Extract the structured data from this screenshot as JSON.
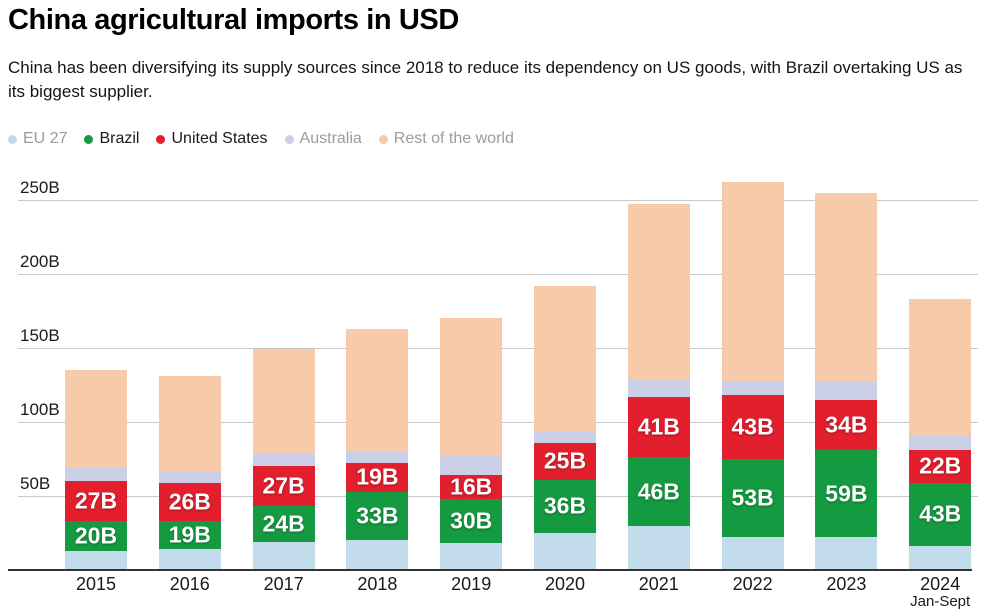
{
  "header": {
    "title": "China agricultural imports in USD",
    "subtitle": "China has been diversifying its supply sources since 2018 to reduce its dependency on US goods, with Brazil overtaking US as its biggest supplier."
  },
  "legend": {
    "items": [
      {
        "label": "EU 27",
        "color": "#bedaea",
        "muted": true
      },
      {
        "label": "Brazil",
        "color": "#149a40",
        "muted": false
      },
      {
        "label": "United States",
        "color": "#e31e2d",
        "muted": false
      },
      {
        "label": "Australia",
        "color": "#cbcfe7",
        "muted": true
      },
      {
        "label": "Rest of the world",
        "color": "#f7cbaa",
        "muted": true
      }
    ]
  },
  "colors": {
    "grid": "#c9c9c9",
    "axis": "#333333",
    "text": "#1a1a1a",
    "muted_text": "#9b9b9b",
    "bar_label": "#ffffff"
  },
  "chart_data": {
    "type": "bar",
    "stacked": true,
    "title": "China agricultural imports in USD",
    "unit": "billions of USD",
    "categories": [
      "2015",
      "2016",
      "2017",
      "2018",
      "2019",
      "2020",
      "2021",
      "2022",
      "2023",
      "2024"
    ],
    "last_category_note": "Jan-Sept",
    "series": [
      {
        "name": "EU 27",
        "color": "#c3dcec",
        "values": [
          13,
          14,
          19,
          20,
          18,
          25,
          30,
          22,
          22,
          16
        ],
        "labels": [
          "",
          "",
          "",
          "",
          "",
          "",
          "",
          "",
          "",
          ""
        ]
      },
      {
        "name": "Brazil",
        "color": "#149a40",
        "values": [
          20,
          19,
          24,
          33,
          30,
          36,
          46,
          53,
          59,
          43
        ],
        "labels": [
          "20B",
          "19B",
          "24B",
          "33B",
          "30B",
          "36B",
          "46B",
          "53B",
          "59B",
          "43B"
        ]
      },
      {
        "name": "United States",
        "color": "#e31e2d",
        "values": [
          27,
          26,
          27,
          19,
          16,
          25,
          41,
          43,
          34,
          22
        ],
        "labels": [
          "27B",
          "26B",
          "27B",
          "19B",
          "16B",
          "25B",
          "41B",
          "43B",
          "34B",
          "22B"
        ]
      },
      {
        "name": "Australia",
        "color": "#cbcfe7",
        "values": [
          9,
          8,
          9,
          8,
          13,
          8,
          12,
          10,
          12,
          10
        ],
        "labels": [
          "",
          "",
          "",
          "",
          "",
          "",
          "",
          "",
          "",
          ""
        ]
      },
      {
        "name": "Rest of the world",
        "color": "#f7cbaa",
        "values": [
          66,
          64,
          70,
          83,
          93,
          98,
          118,
          134,
          128,
          92
        ],
        "labels": [
          "",
          "",
          "",
          "",
          "",
          "",
          "",
          "",
          "",
          ""
        ]
      }
    ],
    "totals": [
      135,
      131,
      149,
      163,
      170,
      192,
      247,
      262,
      255,
      183
    ],
    "yticks": [
      "50B",
      "100B",
      "150B",
      "200B",
      "250B"
    ],
    "ytick_values": [
      50,
      100,
      150,
      200,
      250
    ],
    "ylim": [
      0,
      275
    ],
    "grid": true,
    "legend_position": "top"
  }
}
